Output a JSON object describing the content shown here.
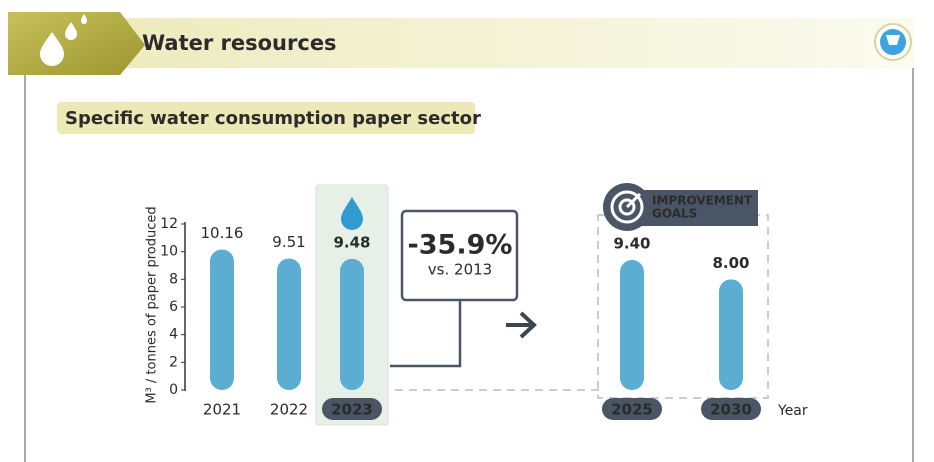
{
  "chart_data": {
    "type": "bar",
    "title": "Water resources",
    "subtitle": "Specific water consumption paper sector",
    "y_label": "M³ / tonnes of paper produced",
    "x_label": "Year",
    "categories": [
      "2021",
      "2022",
      "2023",
      "2025",
      "2030"
    ],
    "values": [
      10.16,
      9.51,
      9.48,
      9.4,
      8.0
    ],
    "value_labels": [
      "10.16",
      "9.51",
      "9.48",
      "9.40",
      "8.00"
    ],
    "color": "#5badd2",
    "ylim": [
      0,
      12
    ],
    "yticks": [
      0,
      2,
      4,
      6,
      8,
      10,
      12
    ],
    "change": "-35.9%",
    "change_note": "vs. 2013",
    "goals_label": [
      "IMPROVEMENT",
      "GOALS"
    ]
  }
}
